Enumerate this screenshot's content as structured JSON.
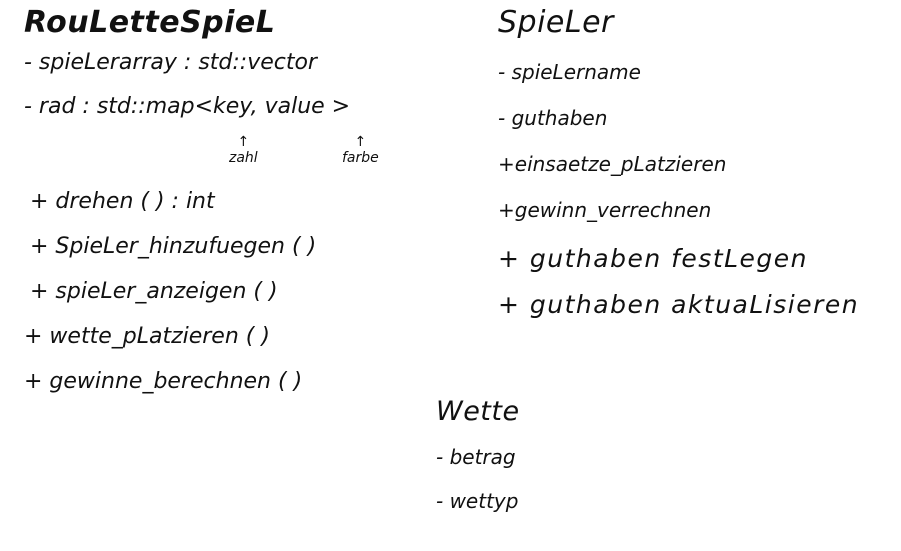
{
  "classes": {
    "roulette": {
      "name": "RouLetteSpieL",
      "attributes": [
        "- spieLerarray : std::vector",
        "- rad : std::map<key,   value >"
      ],
      "annotations": {
        "zahl": "zahl",
        "farbe": "farbe",
        "arrow": "↑"
      },
      "operations": [
        "+ drehen ( ) : int",
        "+ SpieLer_hinzufuegen ( )",
        "+ spieLer_anzeigen ( )",
        "+ wette_pLatzieren ( )",
        "+ gewinne_berechnen ( )"
      ]
    },
    "spieler": {
      "name": "SpieLer",
      "attributes": [
        "- spieLername",
        "- guthaben"
      ],
      "operations": [
        "+einsaetze_pLatzieren",
        "+gewinn_verrechnen",
        "+ guthaben  festLegen",
        "+ guthaben  aktuaLisieren"
      ]
    },
    "wette": {
      "name": "Wette",
      "attributes": [
        "- betrag",
        "- wettyp"
      ]
    }
  }
}
